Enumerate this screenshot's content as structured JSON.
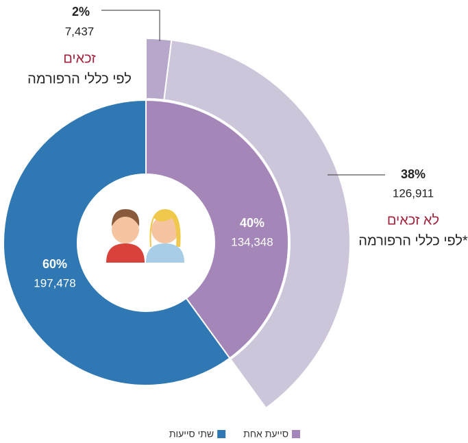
{
  "chart_data": {
    "type": "pie",
    "inner": {
      "categories": [
        "סייעת אחת",
        "שתי סייעות"
      ],
      "values": [
        40,
        60
      ],
      "value_labels": [
        "40%",
        "60%"
      ],
      "counts": [
        134348,
        197478
      ],
      "count_labels": [
        "134,348",
        "197,478"
      ],
      "colors": [
        "#a486b9",
        "#2f78b3"
      ]
    },
    "outer": {
      "values": [
        2,
        38
      ],
      "value_labels": [
        "2%",
        "38%"
      ],
      "counts": [
        7437,
        126911
      ],
      "count_labels": [
        "7,437",
        "126,911"
      ],
      "label_titles": [
        "זכאים",
        "לא זכאים"
      ],
      "label_subtitles": [
        "לפי כללי הרפורמה",
        "לפי כללי הרפורמה*"
      ],
      "colors": [
        "#b7a8cb",
        "#cdc5da"
      ],
      "label_title_color": "#a1223c"
    }
  }
}
